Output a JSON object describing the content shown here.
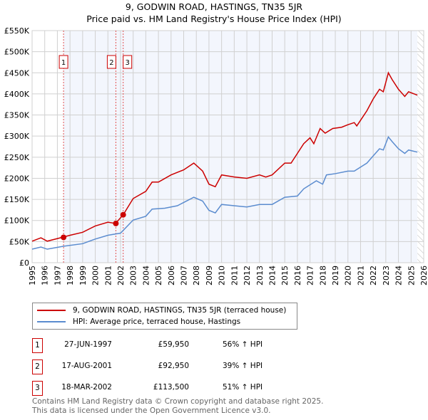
{
  "chart_data": {
    "type": "line",
    "title": "9, GODWIN ROAD, HASTINGS, TN35 5JR",
    "subtitle": "Price paid vs. HM Land Registry's House Price Index (HPI)",
    "xlim": [
      1995,
      2026
    ],
    "ylim": [
      0,
      550000
    ],
    "x_ticks": [
      "1995",
      "1996",
      "1997",
      "1998",
      "1999",
      "2000",
      "2001",
      "2002",
      "2003",
      "2004",
      "2005",
      "2006",
      "2007",
      "2008",
      "2009",
      "2010",
      "2011",
      "2012",
      "2013",
      "2014",
      "2015",
      "2016",
      "2017",
      "2018",
      "2019",
      "2020",
      "2021",
      "2022",
      "2023",
      "2024",
      "2025",
      "2026"
    ],
    "y_ticks": [
      "£0",
      "£50K",
      "£100K",
      "£150K",
      "£200K",
      "£250K",
      "£300K",
      "£350K",
      "£400K",
      "£450K",
      "£500K",
      "£550K"
    ],
    "series": [
      {
        "name": "9, GODWIN ROAD, HASTINGS, TN35 5JR (terraced house)",
        "color": "#cc0000",
        "x": [
          1995,
          1995.7,
          1996.2,
          1997.5,
          1998,
          1999,
          2000,
          2001,
          2001.6,
          2002.2,
          2003,
          2004,
          2004.5,
          2005,
          2006,
          2007,
          2007.8,
          2008.5,
          2009,
          2009.5,
          2010,
          2011,
          2012,
          2013,
          2013.5,
          2014,
          2015,
          2015.5,
          2016,
          2016.5,
          2017,
          2017.3,
          2017.8,
          2018.2,
          2018.8,
          2019.5,
          2020,
          2020.5,
          2020.7,
          2021.5,
          2022,
          2022.5,
          2022.8,
          2023.2,
          2023.5,
          2024,
          2024.5,
          2024.8,
          2025.5
        ],
        "y": [
          51000,
          59000,
          51000,
          61000,
          65000,
          72000,
          87000,
          96000,
          93000,
          113000,
          152000,
          169000,
          191000,
          191000,
          208000,
          220000,
          236000,
          217000,
          186000,
          180000,
          208000,
          203000,
          200000,
          208000,
          203000,
          208000,
          236000,
          236000,
          259000,
          282000,
          296000,
          282000,
          318000,
          307000,
          318000,
          321000,
          327000,
          332000,
          324000,
          360000,
          388000,
          411000,
          405000,
          450000,
          434000,
          411000,
          394000,
          405000,
          397000
        ]
      },
      {
        "name": "HPI: Average price, terraced house, Hastings",
        "color": "#5b8ccf",
        "x": [
          1995,
          1995.7,
          1996.2,
          1997.5,
          1999,
          2000,
          2001,
          2002,
          2003,
          2004,
          2004.5,
          2005.5,
          2006.5,
          2007.8,
          2008.5,
          2009,
          2009.5,
          2010,
          2011,
          2012,
          2013,
          2014,
          2015,
          2016,
          2016.5,
          2017.5,
          2018,
          2018.3,
          2019,
          2020,
          2020.5,
          2021.5,
          2022,
          2022.5,
          2022.8,
          2023.2,
          2023.5,
          2024,
          2024.5,
          2024.8,
          2025.5
        ],
        "y": [
          32000,
          37000,
          32000,
          39000,
          45000,
          56000,
          65000,
          70000,
          101000,
          110000,
          127000,
          129000,
          135000,
          155000,
          146000,
          124000,
          118000,
          138000,
          135000,
          132000,
          138000,
          138000,
          155000,
          158000,
          175000,
          194000,
          186000,
          208000,
          211000,
          217000,
          217000,
          236000,
          253000,
          270000,
          267000,
          298000,
          287000,
          270000,
          259000,
          267000,
          262000
        ]
      }
    ],
    "sales": [
      {
        "label": "1",
        "x": 1997.49,
        "price": 59950,
        "date": "27-JUN-1997",
        "price_text": "£59,950",
        "hpi": "56% ↑ HPI"
      },
      {
        "label": "2",
        "x": 2001.63,
        "price": 92950,
        "date": "17-AUG-2001",
        "price_text": "£92,950",
        "hpi": "39% ↑ HPI"
      },
      {
        "label": "3",
        "x": 2002.21,
        "price": 113500,
        "date": "18-MAR-2002",
        "price_text": "£113,500",
        "hpi": "51% ↑ HPI"
      }
    ],
    "hatch_from": 2025.5,
    "legend_position": "below"
  },
  "footer": {
    "line1": "Contains HM Land Registry data © Crown copyright and database right 2025.",
    "line2": "This data is licensed under the Open Government Licence v3.0."
  }
}
